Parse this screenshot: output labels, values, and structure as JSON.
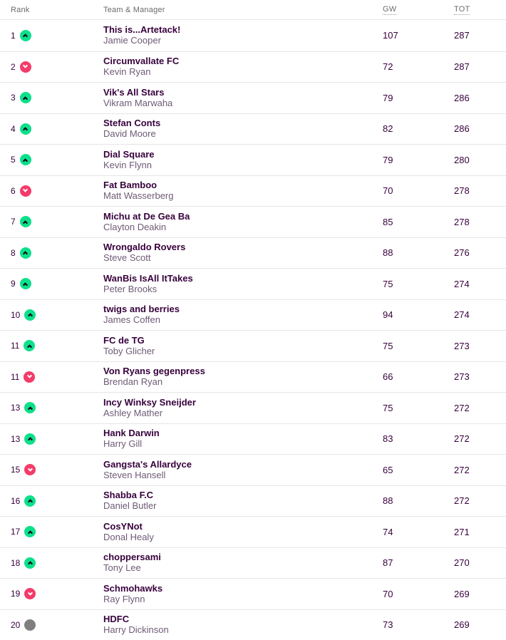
{
  "colors": {
    "purple": "#37003c",
    "manager-text": "#6f5a76",
    "header-text": "#6b6b6b",
    "up-green": "#0ce08a",
    "down-pink": "#f43b69",
    "same-gray": "#7f7f7f",
    "row-border": "#e6e6e6"
  },
  "header": {
    "rank": "Rank",
    "team": "Team & Manager",
    "gw": "GW",
    "tot": "TOT"
  },
  "rows": [
    {
      "rank": "1",
      "movement": "up",
      "team": "This is...Artetack!",
      "manager": "Jamie Cooper",
      "gw": "107",
      "tot": "287"
    },
    {
      "rank": "2",
      "movement": "down",
      "team": "Circumvallate FC",
      "manager": "Kevin Ryan",
      "gw": "72",
      "tot": "287"
    },
    {
      "rank": "3",
      "movement": "up",
      "team": "Vik's All Stars",
      "manager": "Vikram Marwaha",
      "gw": "79",
      "tot": "286"
    },
    {
      "rank": "4",
      "movement": "up",
      "team": "Stefan Conts",
      "manager": "David Moore",
      "gw": "82",
      "tot": "286"
    },
    {
      "rank": "5",
      "movement": "up",
      "team": "Dial Square",
      "manager": "Kevin Flynn",
      "gw": "79",
      "tot": "280"
    },
    {
      "rank": "6",
      "movement": "down",
      "team": "Fat Bamboo",
      "manager": "Matt Wasserberg",
      "gw": "70",
      "tot": "278"
    },
    {
      "rank": "7",
      "movement": "up",
      "team": "Michu at De Gea Ba",
      "manager": "Clayton Deakin",
      "gw": "85",
      "tot": "278"
    },
    {
      "rank": "8",
      "movement": "up",
      "team": "Wrongaldo Rovers",
      "manager": "Steve Scott",
      "gw": "88",
      "tot": "276"
    },
    {
      "rank": "9",
      "movement": "up",
      "team": "WanBis IsAll ItTakes",
      "manager": "Peter Brooks",
      "gw": "75",
      "tot": "274"
    },
    {
      "rank": "10",
      "movement": "up",
      "team": "twigs and berries",
      "manager": "James Coffen",
      "gw": "94",
      "tot": "274"
    },
    {
      "rank": "11",
      "movement": "up",
      "team": "FC de TG",
      "manager": "Toby Glicher",
      "gw": "75",
      "tot": "273"
    },
    {
      "rank": "11",
      "movement": "down",
      "team": "Von Ryans gegenpress",
      "manager": "Brendan Ryan",
      "gw": "66",
      "tot": "273"
    },
    {
      "rank": "13",
      "movement": "up",
      "team": "Incy Winksy Sneijder",
      "manager": "Ashley Mather",
      "gw": "75",
      "tot": "272"
    },
    {
      "rank": "13",
      "movement": "up",
      "team": "Hank Darwin",
      "manager": "Harry Gill",
      "gw": "83",
      "tot": "272"
    },
    {
      "rank": "15",
      "movement": "down",
      "team": "Gangsta's Allardyce",
      "manager": "Steven Hansell",
      "gw": "65",
      "tot": "272"
    },
    {
      "rank": "16",
      "movement": "up",
      "team": "Shabba F.C",
      "manager": "Daniel Butler",
      "gw": "88",
      "tot": "272"
    },
    {
      "rank": "17",
      "movement": "up",
      "team": "CosYNot",
      "manager": "Donal Healy",
      "gw": "74",
      "tot": "271"
    },
    {
      "rank": "18",
      "movement": "up",
      "team": "choppersami",
      "manager": "Tony Lee",
      "gw": "87",
      "tot": "270"
    },
    {
      "rank": "19",
      "movement": "down",
      "team": "Schmohawks",
      "manager": "Ray Flynn",
      "gw": "70",
      "tot": "269"
    },
    {
      "rank": "20",
      "movement": "same",
      "team": "HDFC",
      "manager": "Harry Dickinson",
      "gw": "73",
      "tot": "269"
    }
  ]
}
